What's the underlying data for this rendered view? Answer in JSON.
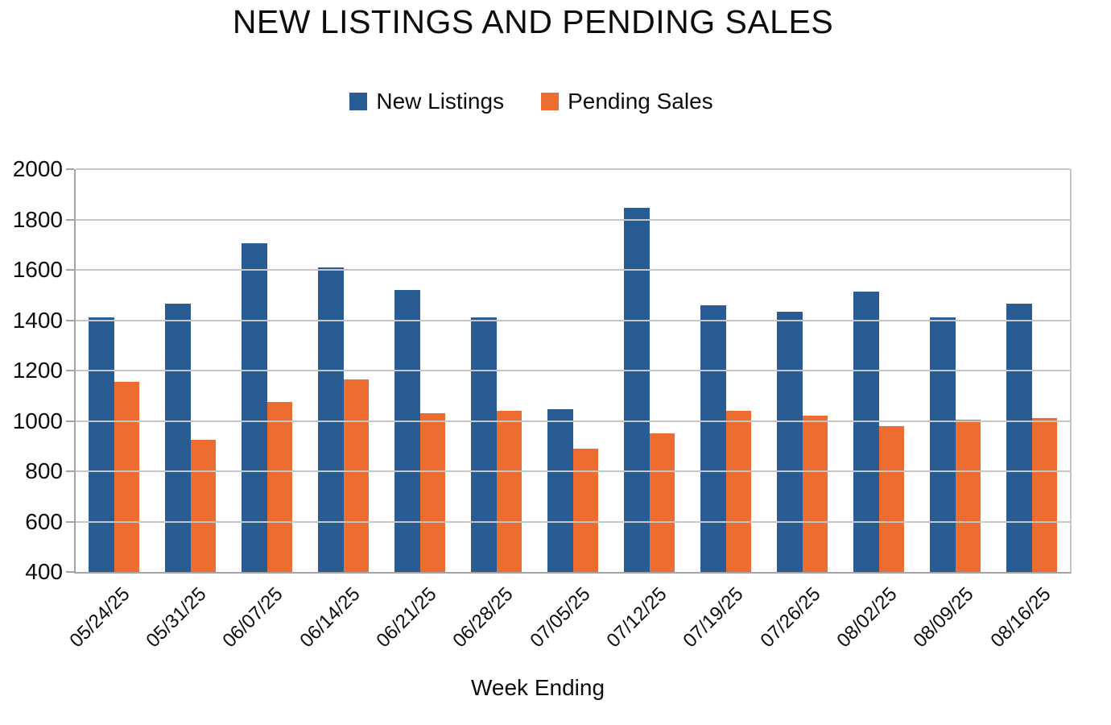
{
  "title": "NEW LISTINGS AND PENDING SALES",
  "x_axis_title": "Week Ending",
  "chart_data": {
    "type": "bar",
    "title": "NEW LISTINGS AND PENDING SALES",
    "xlabel": "Week Ending",
    "ylabel": "",
    "ylim": [
      400,
      2000
    ],
    "y_ticks": [
      400,
      600,
      800,
      1000,
      1200,
      1400,
      1600,
      1800,
      2000
    ],
    "grid": true,
    "legend_position": "top-center",
    "categories": [
      "05/24/25",
      "05/31/25",
      "06/07/25",
      "06/14/25",
      "06/21/25",
      "06/28/25",
      "07/05/25",
      "07/12/25",
      "07/19/25",
      "07/26/25",
      "08/02/25",
      "08/09/25",
      "08/16/25"
    ],
    "series": [
      {
        "name": "New Listings",
        "color": "#2A5C94",
        "values": [
          1410,
          1465,
          1705,
          1610,
          1520,
          1410,
          1045,
          1845,
          1460,
          1435,
          1515,
          1410,
          1465
        ]
      },
      {
        "name": "Pending Sales",
        "color": "#ED6C2F",
        "values": [
          1155,
          925,
          1075,
          1165,
          1030,
          1040,
          890,
          950,
          1040,
          1020,
          980,
          1005,
          1010
        ]
      }
    ]
  },
  "colors": {
    "gridline": "#c6c6c6",
    "axis": "#a3a3a3",
    "text": "#0d0d0d"
  }
}
